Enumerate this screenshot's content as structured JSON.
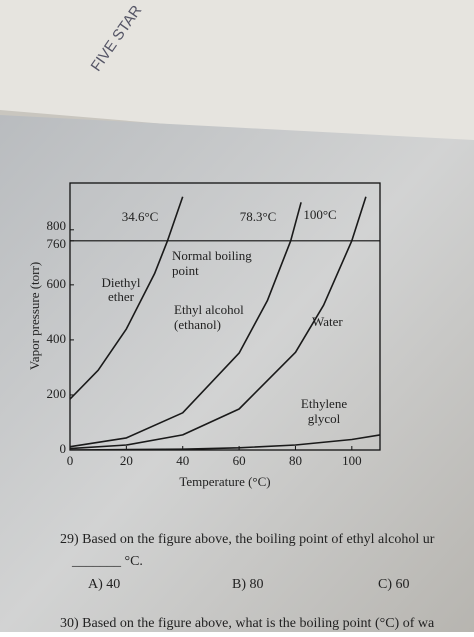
{
  "chart_data": {
    "type": "line",
    "xlabel": "Temperature (°C)",
    "ylabel": "Vapor pressure (torr)",
    "xlim": [
      0,
      110
    ],
    "ylim": [
      0,
      970
    ],
    "xticks": [
      0,
      20,
      40,
      60,
      80,
      100
    ],
    "yticks": [
      0,
      200,
      400,
      600,
      760,
      800
    ],
    "reference_line": {
      "value": 760,
      "label": "Normal boiling point"
    },
    "annotations": [
      "34.6°C",
      "78.3°C",
      "100°C"
    ],
    "series": [
      {
        "name": "Diethyl ether",
        "color": "#1a1a1a",
        "x": [
          0,
          10,
          20,
          30,
          34.6,
          40
        ],
        "values": [
          185,
          290,
          440,
          640,
          760,
          920
        ]
      },
      {
        "name": "Ethyl alcohol (ethanol)",
        "color": "#1a1a1a",
        "x": [
          0,
          20,
          40,
          60,
          70,
          78.3,
          82
        ],
        "values": [
          12,
          44,
          135,
          352,
          542,
          760,
          900
        ]
      },
      {
        "name": "Water",
        "color": "#1a1a1a",
        "x": [
          0,
          20,
          40,
          60,
          80,
          90,
          100,
          105
        ],
        "values": [
          5,
          18,
          55,
          149,
          355,
          526,
          760,
          920
        ]
      },
      {
        "name": "Ethylene glycol",
        "color": "#1a1a1a",
        "x": [
          0,
          40,
          60,
          80,
          100,
          110
        ],
        "values": [
          0,
          3,
          8,
          18,
          38,
          55
        ]
      }
    ]
  },
  "header": {
    "notebook": "FIVE STAR"
  },
  "questions": [
    {
      "text": "29) Based on the figure above, the boiling point of ethyl alcohol ur",
      "blank": "_______ °C.",
      "options": [
        "A) 40",
        "B) 80",
        "C) 60"
      ]
    },
    {
      "text": "30) Based on the figure above, what is the boiling point (°C) of wa"
    }
  ]
}
